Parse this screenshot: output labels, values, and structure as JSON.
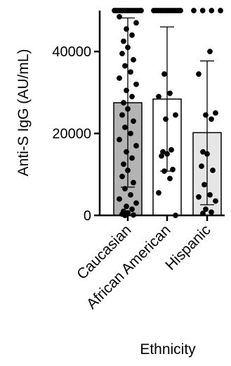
{
  "chart_data": {
    "type": "bar",
    "title": "",
    "xlabel": "Ethnicity",
    "ylabel": "Anti-S IgG (AU/mL)",
    "ylim": [
      0,
      50000
    ],
    "yticks": [
      0,
      20000,
      40000
    ],
    "ytick_labels": [
      "0",
      "20000",
      "40000"
    ],
    "categories": [
      "Caucasian",
      "African American",
      "Hispanic"
    ],
    "means": [
      27500,
      28400,
      20200
    ],
    "sd_lower": [
      6900,
      10800,
      2600
    ],
    "sd_upper": [
      48200,
      46000,
      37700
    ],
    "bar_colors": [
      "#b4b4b4",
      "#ffffff",
      "#e6e6e6"
    ],
    "points": [
      [
        50000,
        50000,
        50000,
        50000,
        50000,
        50000,
        50000,
        50000,
        50000,
        50000,
        50000,
        50000,
        50000,
        50000,
        50000,
        48500,
        47000,
        45500,
        44000,
        42500,
        41000,
        39500,
        38000,
        36500,
        35000,
        33500,
        32000,
        30500,
        29000,
        27500,
        26000,
        24500,
        23000,
        21500,
        20000,
        18500,
        17000,
        15500,
        14000,
        12500,
        11000,
        9500,
        8000,
        6500,
        5000,
        4000,
        3000,
        2200,
        1500,
        1000,
        600,
        300,
        100,
        0
      ],
      [
        50000,
        50000,
        50000,
        50000,
        50000,
        50000,
        50000,
        50000,
        50000,
        50000,
        50000,
        50000,
        50000,
        34500,
        29800,
        29000,
        24500,
        23500,
        16000,
        15500,
        15000,
        14500,
        11200,
        10800,
        9000,
        5500,
        0
      ],
      [
        50000,
        50000,
        50000,
        50000,
        40000,
        34500,
        25000,
        24500,
        23500,
        15500,
        15000,
        12000,
        11000,
        7500,
        5000,
        4500,
        3500,
        1500,
        800,
        500
      ]
    ]
  }
}
